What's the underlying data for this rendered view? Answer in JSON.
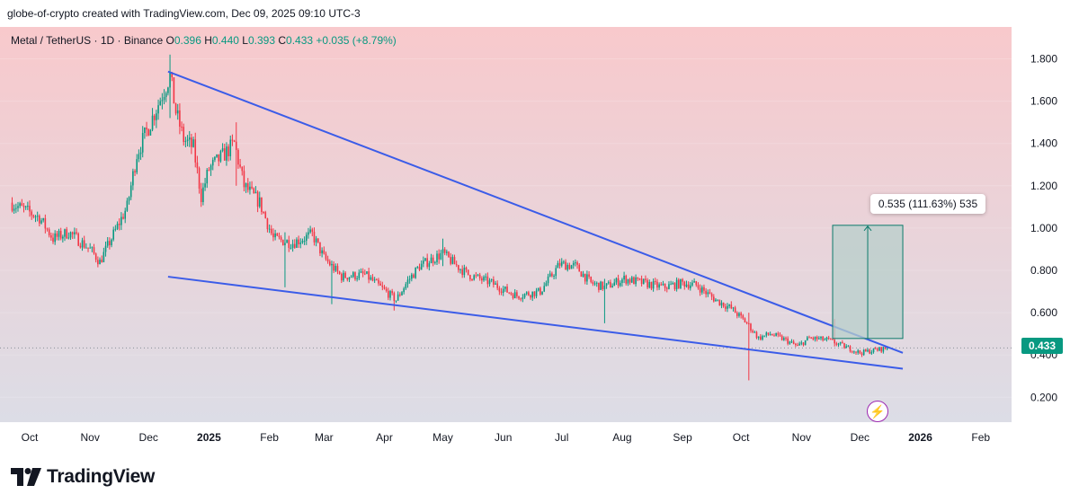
{
  "header": {
    "caption": "globe-of-crypto created with TradingView.com, Dec 09, 2025 09:10 UTC-3"
  },
  "legend": {
    "symbol": "Metal / TetherUS · 1D · Binance",
    "o_label": "O",
    "o_value": "0.396",
    "h_label": "H",
    "h_value": "0.440",
    "l_label": "L",
    "l_value": "0.393",
    "c_label": "C",
    "c_value": "0.433",
    "change": "+0.035 (+8.79%)"
  },
  "measure": {
    "label": "0.535 (111.63%) 535"
  },
  "last_price": {
    "label": "0.433"
  },
  "colors": {
    "up": "#089981",
    "down": "#f23645",
    "trendline": "#3b5ce8",
    "bg_top": "#f8c9cc",
    "bg_bottom": "#dcdde6",
    "measure_fill": "#b7cfcb"
  },
  "icons": {
    "bolt": "lightning-bolt-icon"
  },
  "footer": {
    "brand": "TradingView"
  },
  "chart_data": {
    "type": "candlestick",
    "ylim": [
      0.1,
      1.95
    ],
    "y_ticks": [
      "1.800",
      "1.600",
      "1.400",
      "1.200",
      "1.000",
      "0.800",
      "0.600",
      "0.400",
      "0.200"
    ],
    "y_tick_values": [
      1.8,
      1.6,
      1.4,
      1.2,
      1.0,
      0.8,
      0.6,
      0.4,
      0.2
    ],
    "x_ticks": [
      "Oct",
      "Nov",
      "Dec",
      "2025",
      "Feb",
      "Mar",
      "Apr",
      "May",
      "Jun",
      "Jul",
      "Aug",
      "Sep",
      "Oct",
      "Nov",
      "Dec",
      "2026",
      "Feb"
    ],
    "x_tick_days": [
      0,
      31,
      61,
      92,
      123,
      151,
      182,
      212,
      243,
      273,
      304,
      335,
      365,
      396,
      426,
      457,
      488
    ],
    "x_start_date": "2024-10-01",
    "last_price": 0.433,
    "anchors": [
      [
        -10,
        1.12
      ],
      [
        5,
        1.05
      ],
      [
        12,
        0.95
      ],
      [
        20,
        0.98
      ],
      [
        31,
        0.9
      ],
      [
        36,
        0.84
      ],
      [
        50,
        1.1
      ],
      [
        55,
        1.35
      ],
      [
        62,
        1.5
      ],
      [
        72,
        1.72
      ],
      [
        75,
        1.55
      ],
      [
        79,
        1.42
      ],
      [
        84,
        1.38
      ],
      [
        88,
        1.15
      ],
      [
        92,
        1.28
      ],
      [
        100,
        1.35
      ],
      [
        105,
        1.4
      ],
      [
        110,
        1.2
      ],
      [
        118,
        1.12
      ],
      [
        125,
        0.95
      ],
      [
        135,
        0.93
      ],
      [
        145,
        0.97
      ],
      [
        151,
        0.86
      ],
      [
        160,
        0.77
      ],
      [
        172,
        0.78
      ],
      [
        180,
        0.72
      ],
      [
        188,
        0.66
      ],
      [
        194,
        0.75
      ],
      [
        200,
        0.82
      ],
      [
        212,
        0.88
      ],
      [
        218,
        0.83
      ],
      [
        225,
        0.78
      ],
      [
        237,
        0.74
      ],
      [
        243,
        0.71
      ],
      [
        250,
        0.68
      ],
      [
        262,
        0.7
      ],
      [
        272,
        0.83
      ],
      [
        280,
        0.82
      ],
      [
        288,
        0.74
      ],
      [
        295,
        0.72
      ],
      [
        305,
        0.76
      ],
      [
        315,
        0.74
      ],
      [
        325,
        0.72
      ],
      [
        335,
        0.74
      ],
      [
        342,
        0.73
      ],
      [
        352,
        0.66
      ],
      [
        360,
        0.62
      ],
      [
        368,
        0.55
      ],
      [
        374,
        0.48
      ],
      [
        380,
        0.5
      ],
      [
        388,
        0.47
      ],
      [
        394,
        0.44
      ],
      [
        400,
        0.48
      ],
      [
        410,
        0.47
      ],
      [
        418,
        0.44
      ],
      [
        426,
        0.41
      ],
      [
        432,
        0.42
      ],
      [
        440,
        0.433
      ]
    ],
    "wicks": [
      {
        "day": 72,
        "high": 1.82,
        "low": 1.52
      },
      {
        "day": 106,
        "high": 1.5,
        "low": 1.2
      },
      {
        "day": 131,
        "high": 0.98,
        "low": 0.72
      },
      {
        "day": 155,
        "high": 0.8,
        "low": 0.64
      },
      {
        "day": 187,
        "high": 0.7,
        "low": 0.61
      },
      {
        "day": 212,
        "high": 0.95,
        "low": 0.82
      },
      {
        "day": 295,
        "high": 0.76,
        "low": 0.55
      },
      {
        "day": 369,
        "high": 0.6,
        "low": 0.28
      },
      {
        "day": 413,
        "high": 0.57,
        "low": 0.44
      }
    ],
    "trendlines": [
      {
        "from": [
          71,
          1.74
        ],
        "to": [
          448,
          0.41
        ]
      },
      {
        "from": [
          71,
          0.77
        ],
        "to": [
          448,
          0.335
        ]
      }
    ],
    "measure": {
      "from_day": 412,
      "to_day": 448,
      "low": 0.478,
      "high": 1.013,
      "change": 0.535,
      "percent": 111.63
    }
  }
}
